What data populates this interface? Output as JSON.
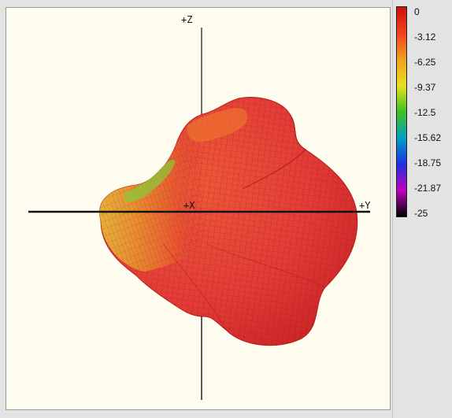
{
  "viewport": {
    "axes": {
      "z_label": "+Z",
      "x_label": "+X",
      "y_label": "+Y"
    },
    "pattern_colors": {
      "primary": "#e83b37",
      "shadow": "#c91e1e",
      "highlight": "#f07a2d",
      "yellow": "#e8c53a",
      "green": "#8cc63a",
      "mesh": "#7a1414"
    },
    "background": "#fffdf0"
  },
  "legend": {
    "ticks": [
      "0",
      "-3.12",
      "-6.25",
      "-9.37",
      "-12.5",
      "-15.62",
      "-18.75",
      "-21.87",
      "-25"
    ],
    "gradient_colors": [
      "#d01010",
      "#f04020",
      "#f0a020",
      "#e8e020",
      "#40c020",
      "#00a0c0",
      "#2030e0",
      "#c000c0",
      "#000000"
    ]
  }
}
